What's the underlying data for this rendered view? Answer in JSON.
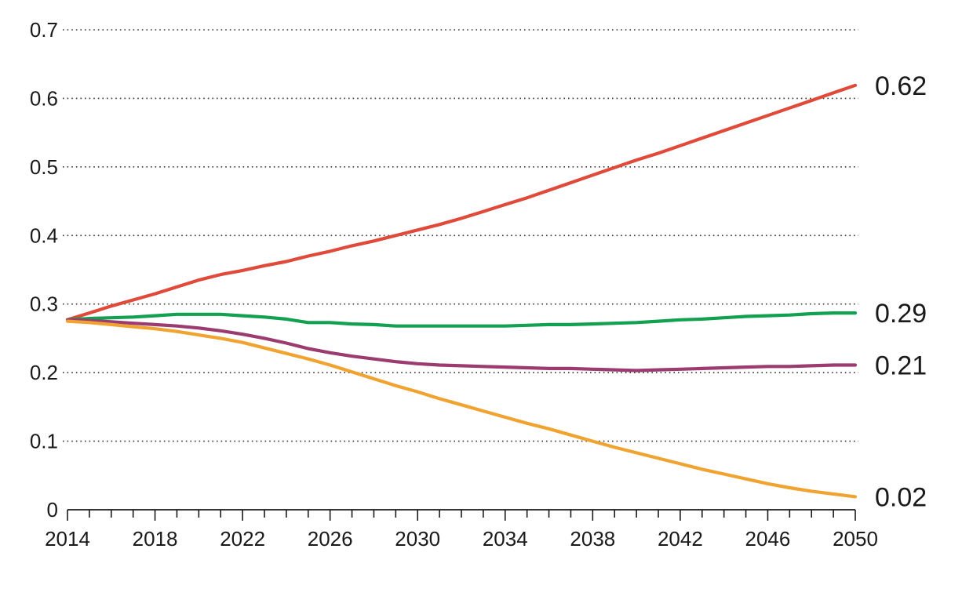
{
  "chart_data": {
    "type": "line",
    "title": "",
    "xlabel": "",
    "ylabel": "",
    "xlim": [
      2014,
      2050
    ],
    "ylim": [
      0,
      0.7
    ],
    "grid": true,
    "legend": "none",
    "x_ticks": [
      "2014",
      "2018",
      "2022",
      "2026",
      "2030",
      "2034",
      "2038",
      "2042",
      "2046",
      "2050"
    ],
    "y_ticks": [
      "0",
      "0.1",
      "0.2",
      "0.3",
      "0.4",
      "0.5",
      "0.6",
      "0.7"
    ],
    "x": [
      2014,
      2015,
      2016,
      2017,
      2018,
      2019,
      2020,
      2021,
      2022,
      2023,
      2024,
      2025,
      2026,
      2027,
      2028,
      2029,
      2030,
      2031,
      2032,
      2033,
      2034,
      2035,
      2036,
      2037,
      2038,
      2039,
      2040,
      2041,
      2042,
      2043,
      2044,
      2045,
      2046,
      2047,
      2048,
      2049,
      2050
    ],
    "series": [
      {
        "color": "#e04a3a",
        "end_label": "0.62",
        "values": [
          0.277,
          0.287,
          0.297,
          0.306,
          0.315,
          0.325,
          0.335,
          0.343,
          0.349,
          0.356,
          0.362,
          0.37,
          0.377,
          0.385,
          0.392,
          0.4,
          0.408,
          0.416,
          0.425,
          0.435,
          0.445,
          0.455,
          0.466,
          0.477,
          0.488,
          0.499,
          0.51,
          0.52,
          0.531,
          0.542,
          0.553,
          0.564,
          0.575,
          0.586,
          0.597,
          0.608,
          0.619
        ]
      },
      {
        "color": "#11a150",
        "end_label": "0.29",
        "values": [
          0.277,
          0.279,
          0.28,
          0.281,
          0.283,
          0.285,
          0.285,
          0.285,
          0.283,
          0.281,
          0.278,
          0.273,
          0.273,
          0.271,
          0.27,
          0.268,
          0.268,
          0.268,
          0.268,
          0.268,
          0.268,
          0.269,
          0.27,
          0.27,
          0.271,
          0.272,
          0.273,
          0.275,
          0.277,
          0.278,
          0.28,
          0.282,
          0.283,
          0.284,
          0.286,
          0.287,
          0.287
        ]
      },
      {
        "color": "#9b3b6f",
        "end_label": "0.21",
        "values": [
          0.277,
          0.276,
          0.274,
          0.272,
          0.27,
          0.268,
          0.265,
          0.261,
          0.256,
          0.25,
          0.243,
          0.235,
          0.229,
          0.224,
          0.22,
          0.216,
          0.213,
          0.211,
          0.21,
          0.209,
          0.208,
          0.207,
          0.206,
          0.206,
          0.205,
          0.204,
          0.203,
          0.204,
          0.205,
          0.206,
          0.207,
          0.208,
          0.209,
          0.209,
          0.21,
          0.211,
          0.211
        ]
      },
      {
        "color": "#f0a330",
        "end_label": "0.02",
        "values": [
          0.275,
          0.273,
          0.27,
          0.267,
          0.264,
          0.26,
          0.255,
          0.25,
          0.244,
          0.236,
          0.228,
          0.22,
          0.211,
          0.201,
          0.191,
          0.181,
          0.172,
          0.162,
          0.153,
          0.144,
          0.135,
          0.126,
          0.118,
          0.109,
          0.1,
          0.091,
          0.083,
          0.075,
          0.067,
          0.059,
          0.052,
          0.045,
          0.038,
          0.032,
          0.027,
          0.023,
          0.019
        ]
      }
    ]
  }
}
